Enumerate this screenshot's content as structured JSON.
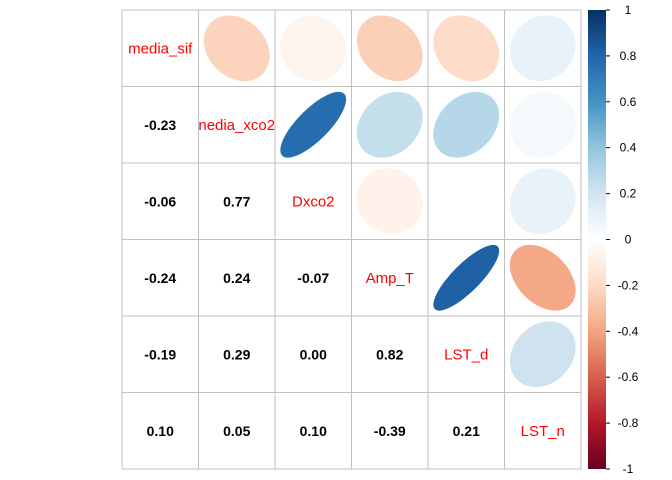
{
  "chart_data": {
    "type": "heatmap",
    "variables": [
      "media_sif",
      "nedia_xco2",
      "Dxco2",
      "Amp_T",
      "LST_d",
      "LST_n"
    ],
    "lower_labels": [
      [
        "",
        "",
        "",
        "",
        "",
        ""
      ],
      [
        "-0.23",
        "",
        "",
        "",
        "",
        ""
      ],
      [
        "-0.06",
        "0.77",
        "",
        "",
        "",
        ""
      ],
      [
        "-0.24",
        "0.24",
        "-0.07",
        "",
        "",
        ""
      ],
      [
        "-0.19",
        "0.29",
        "0.00",
        "0.82",
        "",
        ""
      ],
      [
        "0.10",
        "0.05",
        "0.10",
        "-0.39",
        "0.21",
        ""
      ]
    ],
    "matrix": [
      [
        1.0,
        -0.23,
        -0.06,
        -0.24,
        -0.19,
        0.1
      ],
      [
        -0.23,
        1.0,
        0.77,
        0.24,
        0.29,
        0.05
      ],
      [
        -0.06,
        0.77,
        1.0,
        -0.07,
        0.0,
        0.1
      ],
      [
        -0.24,
        0.24,
        -0.07,
        1.0,
        0.82,
        -0.39
      ],
      [
        -0.19,
        0.29,
        0.0,
        0.82,
        1.0,
        0.21
      ],
      [
        0.1,
        0.05,
        0.1,
        -0.39,
        0.21,
        1.0
      ]
    ],
    "upper_glyph": "ellipse",
    "lower_glyph": "number",
    "colorbar": {
      "ticks": [
        "1",
        "0.8",
        "0.6",
        "0.4",
        "0.2",
        "0",
        "-0.2",
        "-0.4",
        "-0.6",
        "-0.8",
        "-1"
      ],
      "range": [
        -1,
        1
      ]
    },
    "colors": {
      "diag_label": "#ff0000",
      "grid": "#c0c0c0",
      "palette": [
        "#67001F",
        "#B2182B",
        "#D6604D",
        "#F4A582",
        "#FDDBC7",
        "#FFFFFF",
        "#D1E5F0",
        "#92C5DE",
        "#4393C3",
        "#2166AC",
        "#053061"
      ]
    }
  }
}
